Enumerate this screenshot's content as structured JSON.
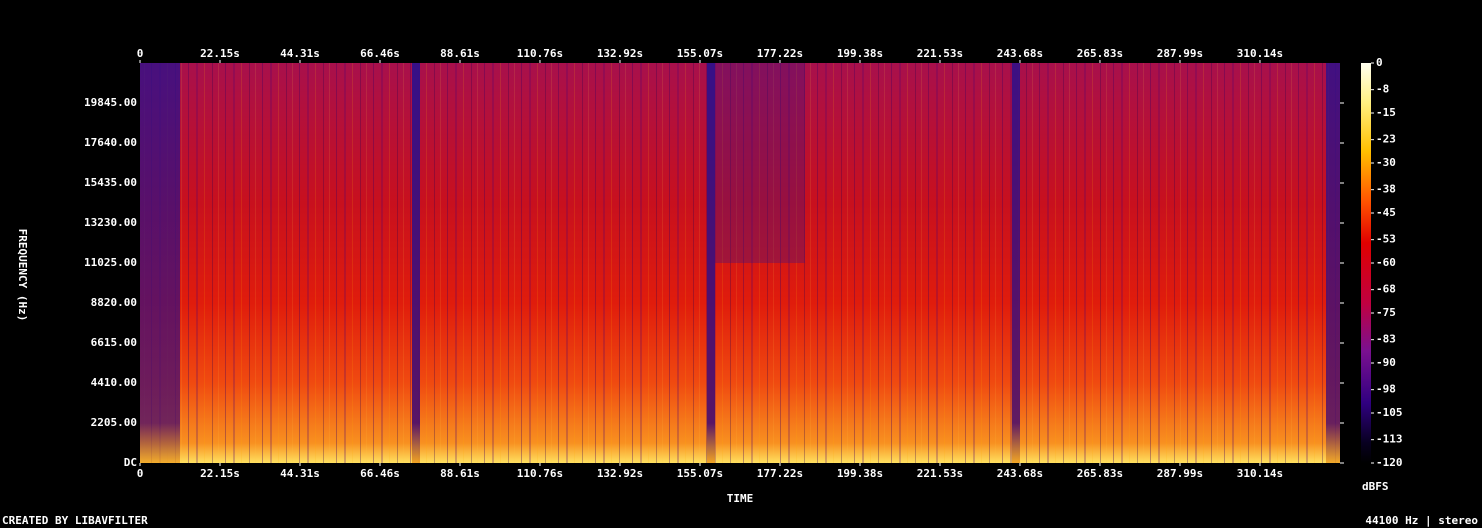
{
  "chart_data": {
    "type": "spectrogram",
    "xlabel": "TIME",
    "ylabel": "FREQUENCY (Hz)",
    "xlim": [
      0,
      332.3
    ],
    "ylim": [
      0,
      22050
    ],
    "xticks": [
      0,
      {
        "value": 22.15,
        "label": "22.15s"
      },
      {
        "value": 44.31,
        "label": "44.31s"
      },
      {
        "value": 66.46,
        "label": "66.46s"
      },
      {
        "value": 88.61,
        "label": "88.61s"
      },
      {
        "value": 110.76,
        "label": "110.76s"
      },
      {
        "value": 132.92,
        "label": "132.92s"
      },
      {
        "value": 155.07,
        "label": "155.07s"
      },
      {
        "value": 177.22,
        "label": "177.22s"
      },
      {
        "value": 199.38,
        "label": "199.38s"
      },
      {
        "value": 221.53,
        "label": "221.53s"
      },
      {
        "value": 243.68,
        "label": "243.68s"
      },
      {
        "value": 265.83,
        "label": "265.83s"
      },
      {
        "value": 287.99,
        "label": "287.99s"
      },
      {
        "value": 310.14,
        "label": "310.14s"
      }
    ],
    "yticks": [
      {
        "value": 0,
        "label": "DC"
      },
      {
        "value": 2205,
        "label": "2205.00"
      },
      {
        "value": 4410,
        "label": "4410.00"
      },
      {
        "value": 6615,
        "label": "6615.00"
      },
      {
        "value": 8820,
        "label": "8820.00"
      },
      {
        "value": 11025,
        "label": "11025.00"
      },
      {
        "value": 13230,
        "label": "13230.00"
      },
      {
        "value": 15435,
        "label": "15435.00"
      },
      {
        "value": 17640,
        "label": "17640.00"
      },
      {
        "value": 19845,
        "label": "19845.00"
      }
    ],
    "colorbar": {
      "label": "dBFS",
      "lim": [
        -120,
        0
      ],
      "ticks": [
        0,
        -8,
        -15,
        -23,
        -30,
        -38,
        -45,
        -53,
        -60,
        -68,
        -75,
        -83,
        -90,
        -98,
        -105,
        -113,
        -120
      ]
    }
  },
  "footer": {
    "left": "CREATED BY LIBAVFILTER",
    "right": "44100 Hz | stereo"
  }
}
